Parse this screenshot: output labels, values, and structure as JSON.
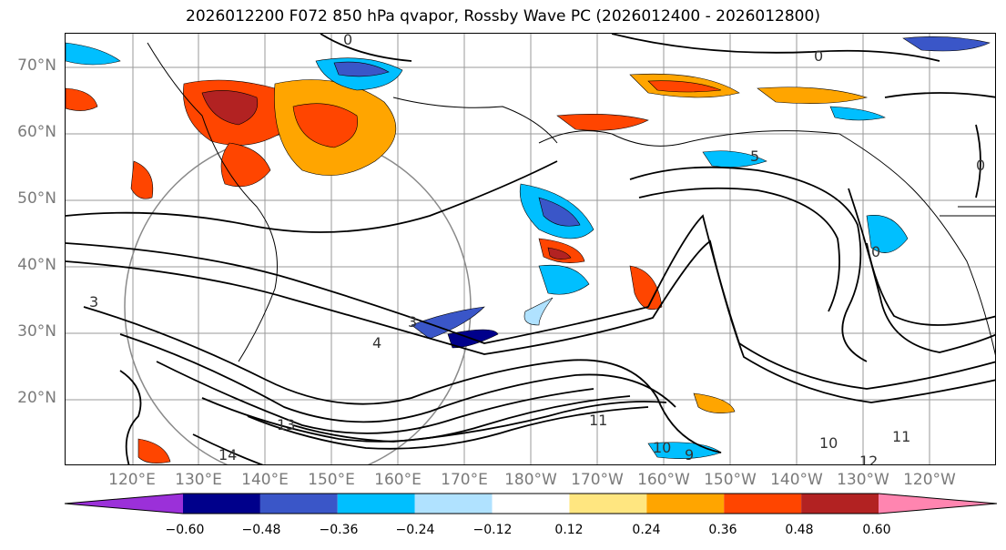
{
  "title": "2026012200 F072 850 hPa qvapor, Rossby Wave PC (2026012400 - 2026012800)",
  "latitude_labels": [
    "70°N",
    "60°N",
    "50°N",
    "40°N",
    "30°N",
    "20°N"
  ],
  "longitude_labels": [
    "120°E",
    "130°E",
    "140°E",
    "150°E",
    "160°E",
    "170°E",
    "180°W",
    "170°W",
    "160°W",
    "150°W",
    "140°W",
    "130°W",
    "120°W"
  ],
  "contour_labels": [
    "0",
    "0",
    "0",
    "0",
    "3",
    "3",
    "4",
    "5",
    "9",
    "10",
    "10",
    "11",
    "11",
    "12",
    "13",
    "14"
  ],
  "colorbar": {
    "ticks": [
      "−0.60",
      "−0.48",
      "−0.36",
      "−0.24",
      "−0.12",
      "0.12",
      "0.24",
      "0.36",
      "0.48",
      "0.60"
    ],
    "colors": [
      "#9b30d9",
      "#00008b",
      "#3a56c8",
      "#00bfff",
      "#b0e2ff",
      "#ffffff",
      "#ffe680",
      "#ffa500",
      "#ff4500",
      "#b22222",
      "#ff85b0"
    ]
  }
}
